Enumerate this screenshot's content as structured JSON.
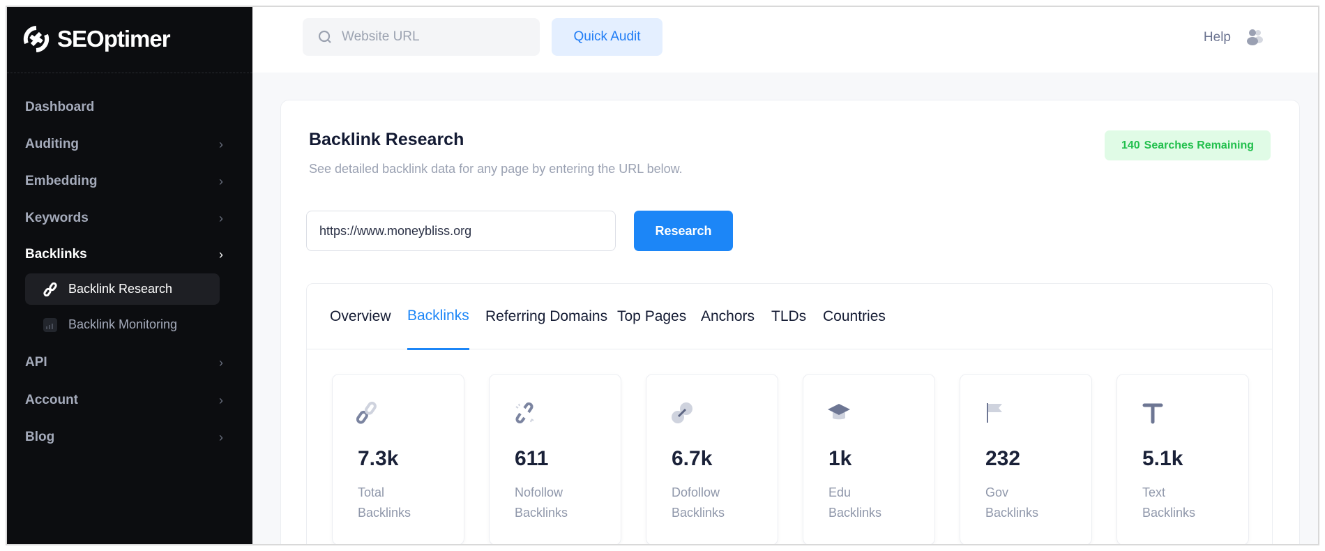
{
  "brand": {
    "name": "SEOptimer"
  },
  "sidebar": {
    "items": [
      {
        "label": "Dashboard",
        "chevron": false
      },
      {
        "label": "Auditing",
        "chevron": true
      },
      {
        "label": "Embedding",
        "chevron": true
      },
      {
        "label": "Keywords",
        "chevron": true
      },
      {
        "label": "Backlinks",
        "chevron": true,
        "active": true
      },
      {
        "label": "API",
        "chevron": true
      },
      {
        "label": "Account",
        "chevron": true
      },
      {
        "label": "Blog",
        "chevron": true
      }
    ],
    "subitems": [
      {
        "label": "Backlink Research",
        "icon": "link-icon",
        "active": true
      },
      {
        "label": "Backlink Monitoring",
        "icon": "chart-icon"
      }
    ]
  },
  "topbar": {
    "search_placeholder": "Website URL",
    "quick_audit": "Quick Audit",
    "help": "Help"
  },
  "main": {
    "title": "Backlink Research",
    "subtitle": "See detailed backlink data for any page by entering the URL below.",
    "badge": {
      "count": "140",
      "label": "Searches Remaining"
    },
    "url_value": "https://www.moneybliss.org",
    "research_label": "Research",
    "tabs": [
      {
        "label": "Overview"
      },
      {
        "label": "Backlinks",
        "active": true
      },
      {
        "label": "Referring Domains"
      },
      {
        "label": "Top Pages"
      },
      {
        "label": "Anchors"
      },
      {
        "label": "TLDs"
      },
      {
        "label": "Countries"
      }
    ],
    "stats": [
      {
        "value": "7.3k",
        "line1": "Total",
        "line2": "Backlinks",
        "icon": "link-icon"
      },
      {
        "value": "611",
        "line1": "Nofollow",
        "line2": "Backlinks",
        "icon": "broken-link-icon"
      },
      {
        "value": "6.7k",
        "line1": "Dofollow",
        "line2": "Backlinks",
        "icon": "link-icon"
      },
      {
        "value": "1k",
        "line1": "Edu",
        "line2": "Backlinks",
        "icon": "graduation-cap-icon"
      },
      {
        "value": "232",
        "line1": "Gov",
        "line2": "Backlinks",
        "icon": "flag-icon"
      },
      {
        "value": "5.1k",
        "line1": "Text",
        "line2": "Backlinks",
        "icon": "text-icon"
      }
    ]
  },
  "colors": {
    "accent": "#1c86f7",
    "sidebar": "#0c0d10",
    "badge_green": "#21bf4c"
  }
}
